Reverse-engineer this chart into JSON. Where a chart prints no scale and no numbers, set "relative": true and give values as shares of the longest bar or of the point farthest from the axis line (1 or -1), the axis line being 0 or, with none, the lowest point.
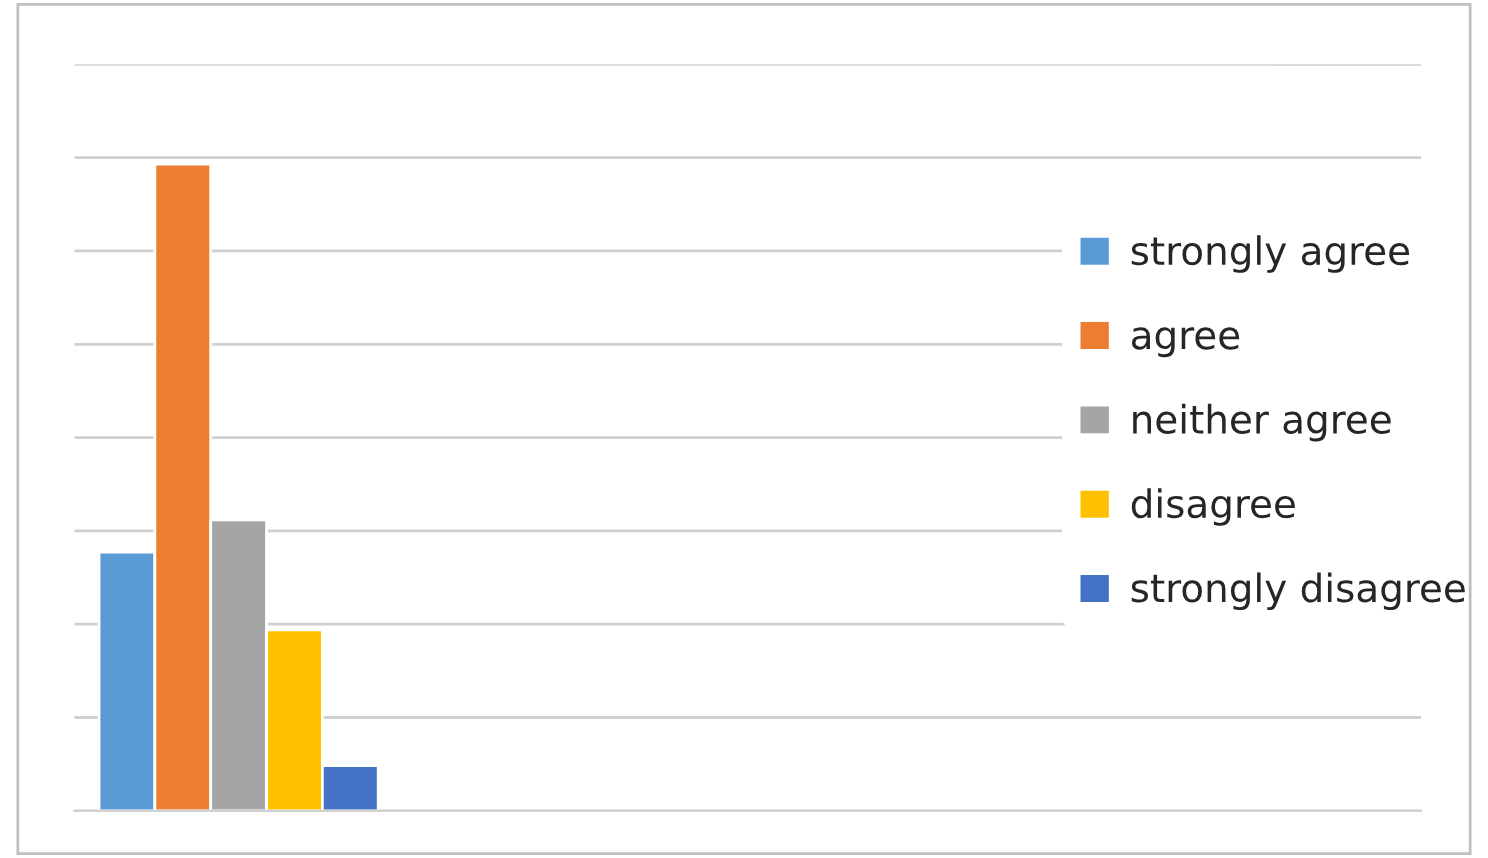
{
  "chart_data": {
    "type": "bar",
    "relative": true,
    "categories": [
      null
    ],
    "series": [
      {
        "name": "strongly agree",
        "color": "#5b9bd5",
        "values": [
          0.4
        ]
      },
      {
        "name": "agree",
        "color": "#ed7d31",
        "values": [
          1
        ]
      },
      {
        "name": "neither agree",
        "color": "#a5a5a5",
        "values": [
          0.45
        ]
      },
      {
        "name": "disagree",
        "color": "#ffc000",
        "values": [
          0.28
        ]
      },
      {
        "name": "strongly disagree",
        "color": "#4472c4",
        "values": [
          0.07
        ]
      }
    ],
    "grid": "y",
    "legend": "right"
  }
}
